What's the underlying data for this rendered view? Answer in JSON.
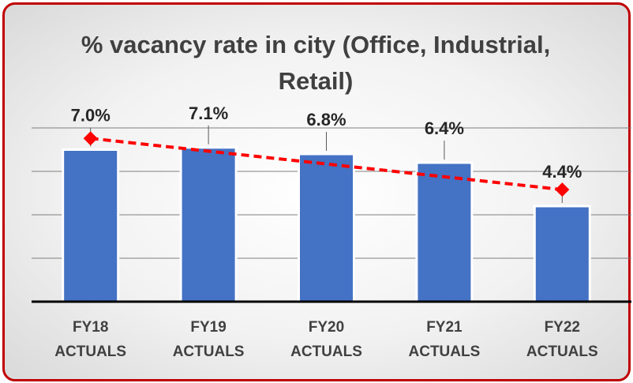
{
  "chart_data": {
    "type": "bar",
    "title": "% vacancy rate in city (Office, Industrial, Retail)",
    "categories": [
      "FY18 ACTUALS",
      "FY19 ACTUALS",
      "FY20 ACTUALS",
      "FY21 ACTUALS",
      "FY22 ACTUALS"
    ],
    "values": [
      7.0,
      7.1,
      6.8,
      6.4,
      4.4
    ],
    "value_labels": [
      "7.0%",
      "7.1%",
      "6.8%",
      "6.4%",
      "4.4%"
    ],
    "color": "#4472c4",
    "ylim": [
      0,
      8
    ],
    "yticks": [
      0,
      2,
      4,
      6,
      8
    ],
    "grid": true,
    "trendline": "linear",
    "trendline_color": "#ff0000"
  }
}
